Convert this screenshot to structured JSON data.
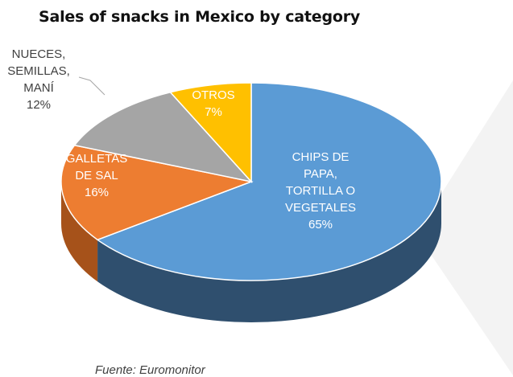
{
  "title": "Sales of snacks in Mexico by category",
  "source": "Fuente: Euromonitor",
  "chart_data": {
    "type": "pie",
    "title": "Sales of snacks in Mexico by category",
    "start_angle_deg": 0,
    "direction": "clockwise",
    "slices": [
      {
        "label_lines": [
          "CHIPS DE",
          "PAPA,",
          "TORTILLA O",
          "VEGETALES",
          "65%"
        ],
        "value": 65,
        "color": "#5B9BD5",
        "side_color": "#2F4F6E"
      },
      {
        "label_lines": [
          "GALLETAS",
          "DE SAL",
          "16%"
        ],
        "value": 16,
        "color": "#ED7D31",
        "side_color": "#A6521A"
      },
      {
        "label_lines": [
          "NUECES,",
          "SEMILLAS,",
          "MANÍ",
          "12%"
        ],
        "value": 12,
        "color": "#A5A5A5",
        "side_color": "#6E6E6E"
      },
      {
        "label_lines": [
          "OTROS",
          "7%"
        ],
        "value": 7,
        "color": "#FFC000",
        "side_color": "#B38600"
      }
    ],
    "legend": "none",
    "style": "3d"
  }
}
